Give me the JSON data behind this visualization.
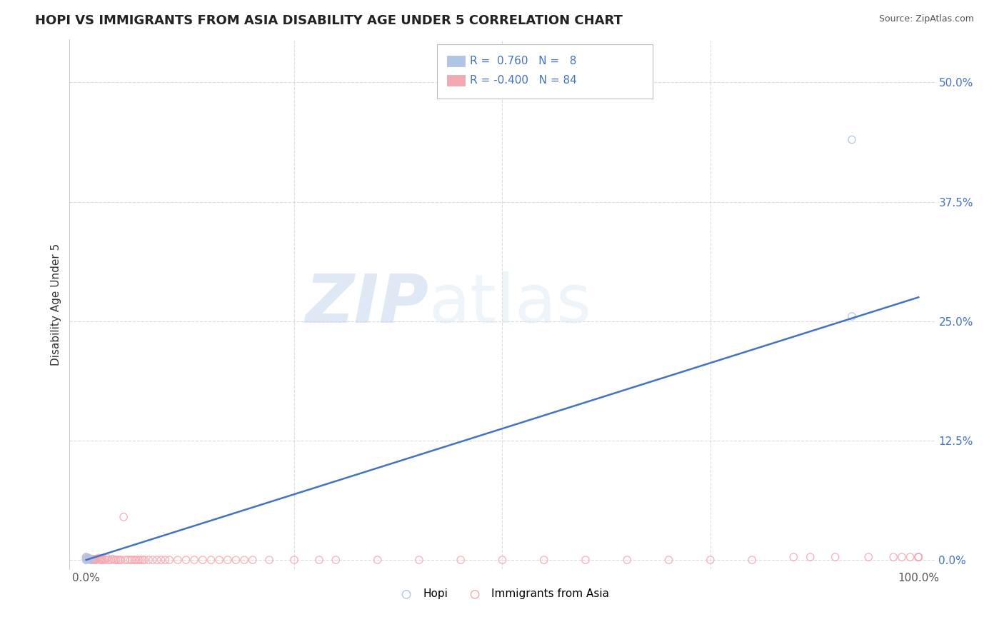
{
  "title": "HOPI VS IMMIGRANTS FROM ASIA DISABILITY AGE UNDER 5 CORRELATION CHART",
  "source": "Source: ZipAtlas.com",
  "ylabel": "Disability Age Under 5",
  "xlabel": "",
  "xlim": [
    -0.02,
    1.02
  ],
  "ylim": [
    -0.01,
    0.545
  ],
  "yticks": [
    0.0,
    0.125,
    0.25,
    0.375,
    0.5
  ],
  "ytick_labels": [
    "0.0%",
    "12.5%",
    "25.0%",
    "37.5%",
    "50.0%"
  ],
  "xticks": [
    0.0,
    1.0
  ],
  "xtick_labels": [
    "0.0%",
    "100.0%"
  ],
  "hopi_R": 0.76,
  "hopi_N": 8,
  "asia_R": -0.4,
  "asia_N": 84,
  "hopi_color": "#adc6e8",
  "asia_color": "#f4a8b0",
  "line_color": "#4472c4",
  "watermark_zip": "ZIP",
  "watermark_atlas": "atlas",
  "background_color": "#ffffff",
  "grid_color": "#cccccc",
  "trendline_x0": 0.0,
  "trendline_y0": 0.0,
  "trendline_x1": 1.0,
  "trendline_y1": 0.275,
  "hopi_scatter_x": [
    0.0,
    0.0,
    0.0,
    0.003,
    0.003,
    0.005,
    0.92,
    0.92
  ],
  "hopi_scatter_y": [
    0.0,
    0.001,
    0.003,
    0.001,
    0.002,
    0.0,
    0.44,
    0.255
  ],
  "asia_scatter_x": [
    0.0,
    0.0,
    0.0,
    0.002,
    0.003,
    0.004,
    0.005,
    0.006,
    0.007,
    0.008,
    0.009,
    0.01,
    0.011,
    0.012,
    0.013,
    0.015,
    0.016,
    0.017,
    0.018,
    0.019,
    0.02,
    0.022,
    0.023,
    0.025,
    0.027,
    0.03,
    0.032,
    0.034,
    0.036,
    0.038,
    0.04,
    0.042,
    0.045,
    0.047,
    0.05,
    0.053,
    0.055,
    0.058,
    0.06,
    0.063,
    0.065,
    0.068,
    0.07,
    0.075,
    0.08,
    0.085,
    0.09,
    0.095,
    0.1,
    0.11,
    0.12,
    0.13,
    0.14,
    0.15,
    0.16,
    0.17,
    0.18,
    0.19,
    0.2,
    0.22,
    0.25,
    0.28,
    0.3,
    0.35,
    0.4,
    0.45,
    0.5,
    0.55,
    0.6,
    0.65,
    0.7,
    0.75,
    0.8,
    0.85,
    0.87,
    0.9,
    0.94,
    0.97,
    0.98,
    0.99,
    1.0,
    1.0,
    1.0,
    1.0
  ],
  "asia_scatter_y": [
    0.0,
    0.002,
    0.003,
    0.001,
    0.002,
    0.001,
    0.001,
    0.0,
    0.001,
    0.0,
    0.0,
    0.001,
    0.0,
    0.0,
    0.001,
    0.002,
    0.001,
    0.0,
    0.001,
    0.0,
    0.0,
    0.001,
    0.0,
    0.002,
    0.0,
    0.0,
    0.001,
    0.0,
    0.0,
    0.0,
    0.0,
    0.0,
    0.045,
    0.0,
    0.0,
    0.0,
    0.0,
    0.0,
    0.0,
    0.0,
    0.0,
    0.0,
    0.0,
    0.0,
    0.0,
    0.0,
    0.0,
    0.0,
    0.0,
    0.0,
    0.0,
    0.0,
    0.0,
    0.0,
    0.0,
    0.0,
    0.0,
    0.0,
    0.0,
    0.0,
    0.0,
    0.0,
    0.0,
    0.0,
    0.0,
    0.0,
    0.0,
    0.0,
    0.0,
    0.0,
    0.0,
    0.0,
    0.0,
    0.003,
    0.003,
    0.003,
    0.003,
    0.003,
    0.003,
    0.003,
    0.003,
    0.003,
    0.003,
    0.003
  ]
}
